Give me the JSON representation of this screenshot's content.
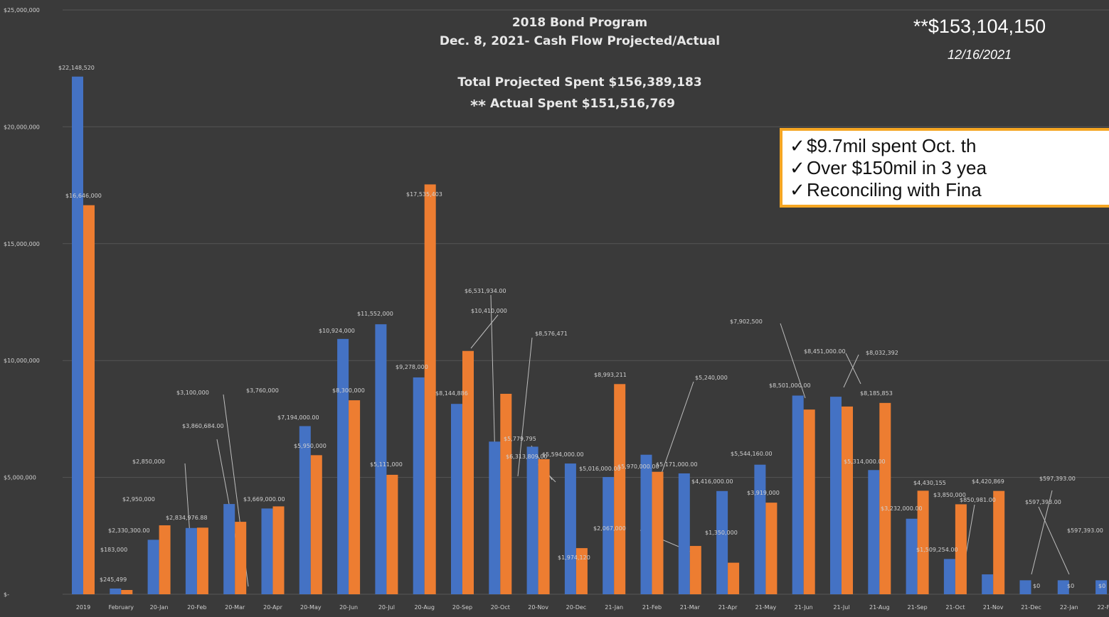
{
  "header": {
    "title": "2018 Bond Program",
    "subtitle": "Dec. 8, 2021- Cash Flow Projected/Actual",
    "total_projected": "Total Projected Spent $156,389,183",
    "actual_spent": "Actual Spent $151,516,769",
    "actual_prefix": "**"
  },
  "callout": {
    "total": "**$153,104,150",
    "date": "12/16/2021",
    "check_glyph": "✓",
    "notes": [
      "$9.7mil spent Oct. th",
      "Over $150mil in 3 yea",
      "Reconciling with Fina"
    ]
  },
  "chart_data": {
    "type": "bar",
    "ylim": [
      0,
      25000000
    ],
    "y_ticks": [
      {
        "value": 0,
        "label": "$-"
      },
      {
        "value": 5000000,
        "label": "$5,000,000"
      },
      {
        "value": 10000000,
        "label": "$10,000,000"
      },
      {
        "value": 15000000,
        "label": "$15,000,000"
      },
      {
        "value": 20000000,
        "label": "$20,000,000"
      },
      {
        "value": 25000000,
        "label": "$25,000,000"
      }
    ],
    "grid": true,
    "colors": {
      "series1": "#4472c4",
      "series2": "#ed7d31",
      "label": "#d0d0d0",
      "grid": "#555555"
    },
    "categories": [
      "2019",
      "February",
      "20-Jan",
      "20-Feb",
      "20-Mar",
      "20-Apr",
      "20-May",
      "20-Jun",
      "20-Jul",
      "20-Aug",
      "20-Sep",
      "20-Oct",
      "20-Nov",
      "20-Dec",
      "21-Jan",
      "21-Feb",
      "21-Mar",
      "21-Apr",
      "21-May",
      "21-Jun",
      "21-Jul",
      "21-Aug",
      "21-Sep",
      "21-Oct",
      "21-Nov",
      "21-Dec",
      "22-Jan",
      "22-Feb"
    ],
    "series": [
      {
        "values": [
          22148520,
          245499,
          2330300,
          2834976.88,
          3860684,
          3669000,
          7194000,
          10924000,
          11552000,
          9278000,
          8144886,
          6531934,
          6313809,
          5594000,
          5016000,
          5970000,
          5171000,
          4416000,
          5544160,
          8501000,
          8451000,
          5314000,
          3232000,
          1509254,
          850981,
          597393,
          597393,
          597393
        ]
      },
      {
        "values": [
          16646000,
          183000,
          2950000,
          2850000,
          3100000,
          3760000,
          5950000,
          8300000,
          5111000,
          17535403,
          10410000,
          8576471,
          5779795,
          1974120,
          8993211,
          5240000,
          2067000,
          1350000,
          3919000,
          7902500,
          8032392,
          8185853,
          4430155,
          3850000,
          4420869,
          0,
          0,
          0
        ]
      }
    ],
    "data_labels": [
      {
        "text": "$22,148,520"
      },
      {
        "text": "$16,646,000"
      },
      {
        "text": "$245,499"
      },
      {
        "text": "$183,000"
      },
      {
        "text": "$2,330,300.00"
      },
      {
        "text": "$2,950,000"
      },
      {
        "text": "$2,834,976.88"
      },
      {
        "text": "$2,850,000"
      },
      {
        "text": "$3,860,684.00"
      },
      {
        "text": "$3,100,000"
      },
      {
        "text": "$3,669,000.00"
      },
      {
        "text": "$3,760,000"
      },
      {
        "text": "$7,194,000.00"
      },
      {
        "text": "$5,950,000"
      },
      {
        "text": "$10,924,000"
      },
      {
        "text": "$8,300,000"
      },
      {
        "text": "$11,552,000"
      },
      {
        "text": "$5,111,000"
      },
      {
        "text": "$9,278,000"
      },
      {
        "text": "$17,535,403"
      },
      {
        "text": "$8,144,886"
      },
      {
        "text": "$10,410,000"
      },
      {
        "text": "$6,531,934.00"
      },
      {
        "text": "$8,576,471"
      },
      {
        "text": "$6,313,809.00"
      },
      {
        "text": "$5,779,795"
      },
      {
        "text": "$5,594,000.00"
      },
      {
        "text": "$1,974,120"
      },
      {
        "text": "$5,016,000.00"
      },
      {
        "text": "$8,993,211"
      },
      {
        "text": "$5,970,000.00"
      },
      {
        "text": "$5,240,000"
      },
      {
        "text": "$5,171,000.00"
      },
      {
        "text": "$2,067,000"
      },
      {
        "text": "$4,416,000.00"
      },
      {
        "text": "$1,350,000"
      },
      {
        "text": "$5,544,160.00"
      },
      {
        "text": "$3,919,000"
      },
      {
        "text": "$8,501,000.00"
      },
      {
        "text": "$7,902,500"
      },
      {
        "text": "$8,451,000.00"
      },
      {
        "text": "$8,032,392"
      },
      {
        "text": "$5,314,000.00"
      },
      {
        "text": "$8,185,853"
      },
      {
        "text": "$3,232,000.00"
      },
      {
        "text": "$4,430,155"
      },
      {
        "text": "$1,509,254.00"
      },
      {
        "text": "$3,850,000"
      },
      {
        "text": "$850,981.00"
      },
      {
        "text": "$4,420,869"
      },
      {
        "text": "$597,393.00"
      },
      {
        "text": "$0"
      },
      {
        "text": "$597,393.00"
      },
      {
        "text": "$0"
      },
      {
        "text": "$597,393.00"
      },
      {
        "text": "$0"
      }
    ]
  }
}
